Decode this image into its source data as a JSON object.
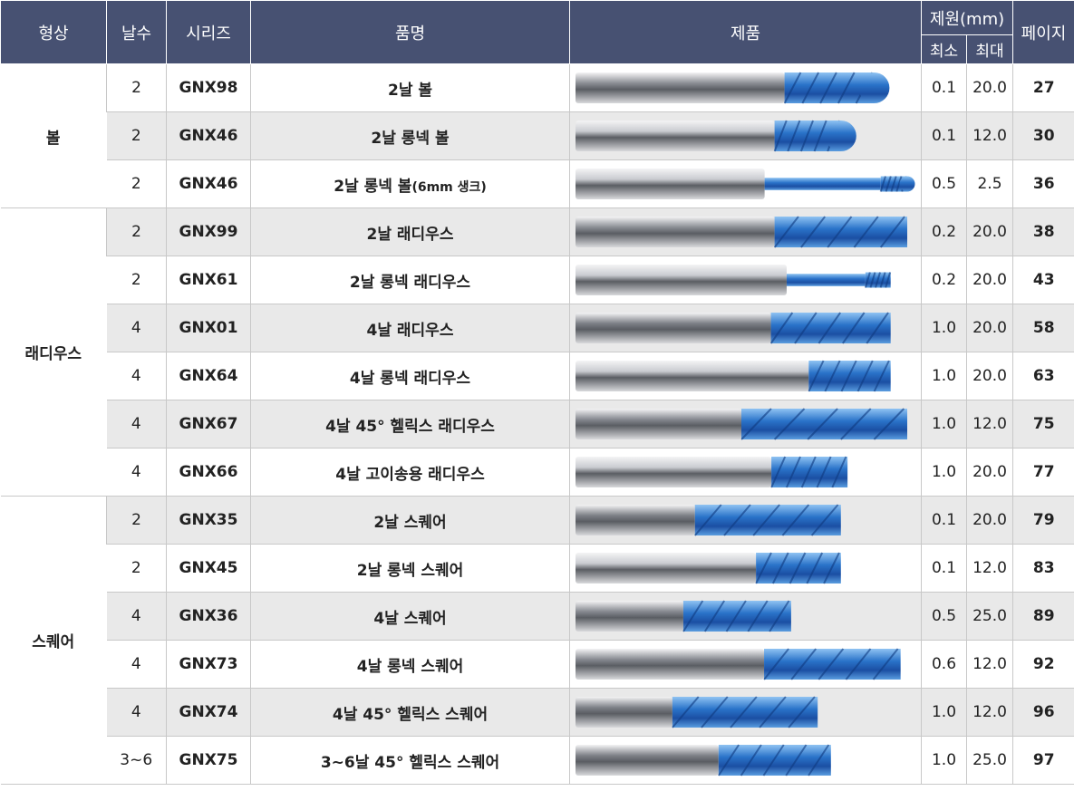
{
  "headers": {
    "shape": "형상",
    "flutes": "날수",
    "series": "시리즈",
    "name": "품명",
    "product": "제품",
    "spec": "제원(mm)",
    "min": "최소",
    "max": "최대",
    "page": "페이지"
  },
  "groups": [
    {
      "label": "볼",
      "start": 0,
      "span": 3
    },
    {
      "label": "래디우스",
      "start": 3,
      "span": 6
    },
    {
      "label": "스퀘어",
      "start": 9,
      "span": 6
    }
  ],
  "rows": [
    {
      "flutes": "2",
      "series": "GNX98",
      "name": "2날 볼",
      "name_suffix": "",
      "min": "0.1",
      "max": "20.0",
      "page": "27",
      "tool": {
        "shank": "#8a8d93",
        "neck": 0,
        "tip": "ball",
        "len": 0.9,
        "flute": 0.3
      }
    },
    {
      "flutes": "2",
      "series": "GNX46",
      "name": "2날 롱넥 볼",
      "name_suffix": "",
      "min": "0.1",
      "max": "12.0",
      "page": "30",
      "tool": {
        "shank": "#c9cbd0",
        "neck": 0.0,
        "tip": "ball",
        "len": 0.8,
        "flute": 0.25
      }
    },
    {
      "flutes": "2",
      "series": "GNX46",
      "name": "2날 롱넥 볼",
      "name_suffix": "(6mm 생크)",
      "min": "0.5",
      "max": "2.5",
      "page": "36",
      "tool": {
        "shank": "#c9cbd0",
        "neck": 0.35,
        "tip": "ball",
        "len": 1.0,
        "flute": 0.08
      }
    },
    {
      "flutes": "2",
      "series": "GNX99",
      "name": "2날 래디우스",
      "name_suffix": "",
      "min": "0.2",
      "max": "20.0",
      "page": "38",
      "tool": {
        "shank": "#8a8d93",
        "neck": 0,
        "tip": "flat",
        "len": 1.0,
        "flute": 0.4
      }
    },
    {
      "flutes": "2",
      "series": "GNX61",
      "name": "2날 롱넥 래디우스",
      "name_suffix": "",
      "min": "0.2",
      "max": "20.0",
      "page": "43",
      "tool": {
        "shank": "#c9cbd0",
        "neck": 0.25,
        "tip": "flat",
        "len": 0.95,
        "flute": 0.08
      }
    },
    {
      "flutes": "4",
      "series": "GNX01",
      "name": "4날 래디우스",
      "name_suffix": "",
      "min": "1.0",
      "max": "20.0",
      "page": "58",
      "tool": {
        "shank": "#7d8087",
        "neck": 0,
        "tip": "flat",
        "len": 0.95,
        "flute": 0.38
      }
    },
    {
      "flutes": "4",
      "series": "GNX64",
      "name": "4날 롱넥 래디우스",
      "name_suffix": "",
      "min": "1.0",
      "max": "20.0",
      "page": "63",
      "tool": {
        "shank": "#c9cbd0",
        "neck": 0.0,
        "tip": "flat",
        "len": 0.95,
        "flute": 0.26
      }
    },
    {
      "flutes": "4",
      "series": "GNX67",
      "name": "4날 45° 헬릭스 래디우스",
      "name_suffix": "",
      "min": "1.0",
      "max": "12.0",
      "page": "75",
      "tool": {
        "shank": "#868990",
        "neck": 0,
        "tip": "flat",
        "len": 1.0,
        "flute": 0.5
      }
    },
    {
      "flutes": "4",
      "series": "GNX66",
      "name": "4날 고이송용 래디우스",
      "name_suffix": "",
      "min": "1.0",
      "max": "20.0",
      "page": "77",
      "tool": {
        "shank": "#c9cbd0",
        "neck": 0,
        "tip": "flat",
        "len": 0.82,
        "flute": 0.28
      }
    },
    {
      "flutes": "2",
      "series": "GNX35",
      "name": "2날 스퀘어",
      "name_suffix": "",
      "min": "0.1",
      "max": "20.0",
      "page": "79",
      "tool": {
        "shank": "#7d8087",
        "neck": 0,
        "tip": "flat",
        "len": 0.8,
        "flute": 0.55
      }
    },
    {
      "flutes": "2",
      "series": "GNX45",
      "name": "2날 롱넥 스퀘어",
      "name_suffix": "",
      "min": "0.1",
      "max": "12.0",
      "page": "83",
      "tool": {
        "shank": "#c9cbd0",
        "neck": 0,
        "tip": "flat",
        "len": 0.8,
        "flute": 0.32
      }
    },
    {
      "flutes": "4",
      "series": "GNX36",
      "name": "4날 스퀘어",
      "name_suffix": "",
      "min": "0.5",
      "max": "25.0",
      "page": "89",
      "tool": {
        "shank": "#868990",
        "neck": 0,
        "tip": "flat",
        "len": 0.65,
        "flute": 0.5
      }
    },
    {
      "flutes": "4",
      "series": "GNX73",
      "name": "4날 롱넥 스퀘어",
      "name_suffix": "",
      "min": "0.6",
      "max": "12.0",
      "page": "92",
      "tool": {
        "shank": "#868990",
        "neck": 0,
        "tip": "flat",
        "len": 0.98,
        "flute": 0.42
      }
    },
    {
      "flutes": "4",
      "series": "GNX74",
      "name": "4날 45° 헬릭스 스퀘어",
      "name_suffix": "",
      "min": "1.0",
      "max": "12.0",
      "page": "96",
      "tool": {
        "shank": "#7d8087",
        "neck": 0,
        "tip": "flat",
        "len": 0.73,
        "flute": 0.6
      }
    },
    {
      "flutes": "3~6",
      "series": "GNX75",
      "name": "3~6날 45° 헬릭스 스퀘어",
      "name_suffix": "",
      "min": "1.0",
      "max": "25.0",
      "page": "97",
      "tool": {
        "shank": "#7d8087",
        "neck": 0,
        "tip": "flat",
        "len": 0.77,
        "flute": 0.44
      }
    }
  ]
}
